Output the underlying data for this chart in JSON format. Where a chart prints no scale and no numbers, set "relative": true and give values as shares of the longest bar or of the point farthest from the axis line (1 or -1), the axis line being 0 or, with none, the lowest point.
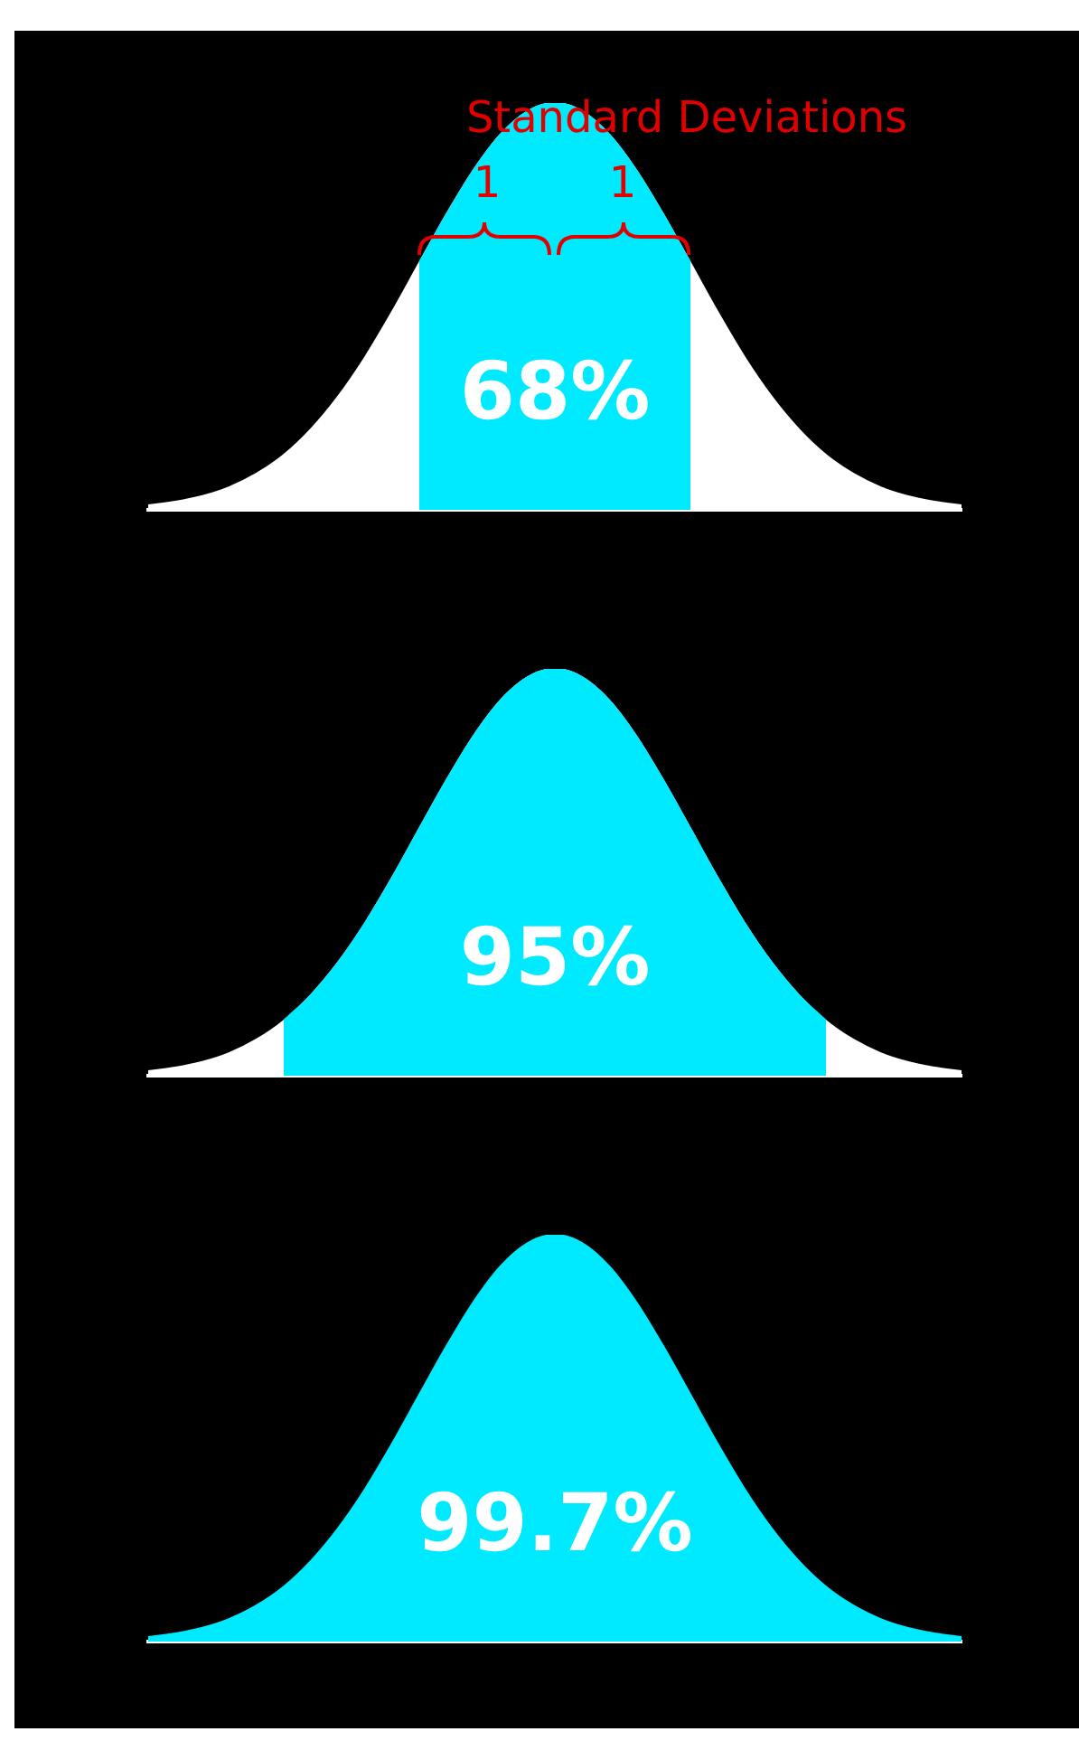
{
  "chart_data": [
    {
      "type": "area",
      "relative": true,
      "categories": [
        null,
        null,
        null,
        null,
        null,
        null,
        null,
        null,
        null,
        null,
        null,
        null,
        null,
        null,
        null,
        null,
        null,
        null,
        null,
        null,
        null,
        null,
        null,
        null,
        null,
        null,
        null,
        null,
        null,
        null,
        null
      ],
      "series": [
        {
          "color": "#ffffff",
          "values": [
            0.011,
            0.02,
            0.034,
            0.056,
            0.089,
            0.135,
            0.198,
            0.278,
            0.375,
            0.487,
            0.607,
            0.726,
            0.835,
            0.923,
            0.98,
            1,
            0.98,
            0.923,
            0.835,
            0.726,
            0.607,
            0.487,
            0.375,
            0.278,
            0.198,
            0.135,
            0.089,
            0.056,
            0.034,
            0.02,
            0.011
          ]
        },
        {
          "color": "#00eaff",
          "values": [
            null,
            null,
            null,
            null,
            null,
            null,
            null,
            null,
            null,
            null,
            0.607,
            0.726,
            0.835,
            0.923,
            0.98,
            1,
            0.98,
            0.923,
            0.835,
            0.726,
            0.607,
            null,
            null,
            null,
            null,
            null,
            null,
            null,
            null,
            null,
            null
          ]
        }
      ],
      "annotations": [
        "Standard Deviations",
        "1",
        "1",
        "68%"
      ]
    },
    {
      "type": "area",
      "relative": true,
      "categories": [
        null,
        null,
        null,
        null,
        null,
        null,
        null,
        null,
        null,
        null,
        null,
        null,
        null,
        null,
        null,
        null,
        null,
        null,
        null,
        null,
        null,
        null,
        null,
        null,
        null,
        null,
        null,
        null,
        null,
        null,
        null
      ],
      "series": [
        {
          "color": "#ffffff",
          "values": [
            0.011,
            0.02,
            0.034,
            0.056,
            0.089,
            0.135,
            0.198,
            0.278,
            0.375,
            0.487,
            0.607,
            0.726,
            0.835,
            0.923,
            0.98,
            1,
            0.98,
            0.923,
            0.835,
            0.726,
            0.607,
            0.487,
            0.375,
            0.278,
            0.198,
            0.135,
            0.089,
            0.056,
            0.034,
            0.02,
            0.011
          ]
        },
        {
          "color": "#00eaff",
          "values": [
            null,
            null,
            null,
            null,
            null,
            0.135,
            0.198,
            0.278,
            0.375,
            0.487,
            0.607,
            0.726,
            0.835,
            0.923,
            0.98,
            1,
            0.98,
            0.923,
            0.835,
            0.726,
            0.607,
            0.487,
            0.375,
            0.278,
            0.198,
            0.135,
            null,
            null,
            null,
            null,
            null
          ]
        }
      ],
      "annotations": [
        "95%"
      ]
    },
    {
      "type": "area",
      "relative": true,
      "categories": [
        null,
        null,
        null,
        null,
        null,
        null,
        null,
        null,
        null,
        null,
        null,
        null,
        null,
        null,
        null,
        null,
        null,
        null,
        null,
        null,
        null,
        null,
        null,
        null,
        null,
        null,
        null,
        null,
        null,
        null,
        null
      ],
      "series": [
        {
          "color": "#00eaff",
          "values": [
            0.011,
            0.02,
            0.034,
            0.056,
            0.089,
            0.135,
            0.198,
            0.278,
            0.375,
            0.487,
            0.607,
            0.726,
            0.835,
            0.923,
            0.98,
            1,
            0.98,
            0.923,
            0.835,
            0.726,
            0.607,
            0.487,
            0.375,
            0.278,
            0.198,
            0.135,
            0.089,
            0.056,
            0.034,
            0.02,
            0.011
          ]
        }
      ],
      "annotations": [
        "99.7%"
      ]
    }
  ]
}
